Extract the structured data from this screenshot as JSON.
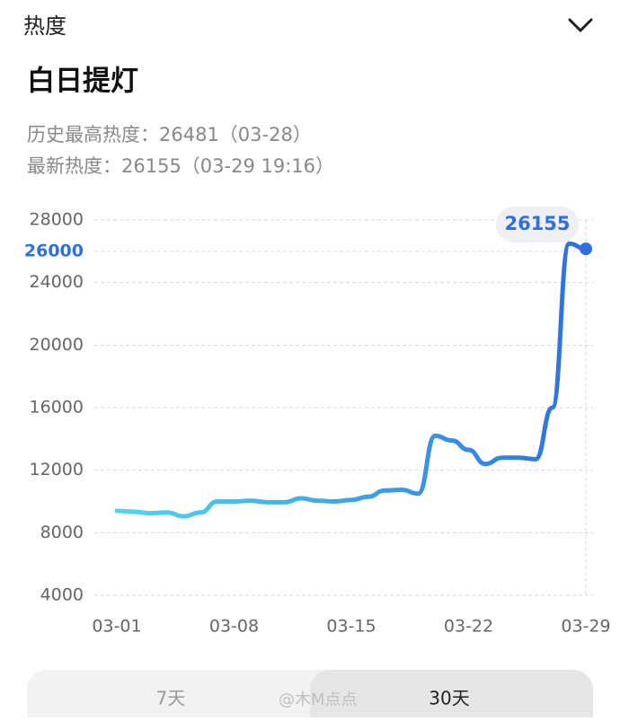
{
  "header": {
    "title": "热度"
  },
  "name": "白日提灯",
  "stats": [
    "历史最高热度：26481（03-28）",
    "最新热度：26155（03-29 19:16）"
  ],
  "chart_data": {
    "type": "line",
    "categories": [
      "03-01",
      null,
      null,
      null,
      null,
      null,
      null,
      "03-08",
      null,
      null,
      null,
      null,
      null,
      null,
      "03-15",
      null,
      null,
      null,
      null,
      null,
      null,
      "03-22",
      null,
      null,
      null,
      null,
      null,
      null,
      "03-29"
    ],
    "series": [
      {
        "name": "热度",
        "color": "#2f6fe0",
        "values": [
          9400,
          9350,
          9250,
          9300,
          9050,
          9300,
          10000,
          10000,
          10050,
          9950,
          9950,
          10200,
          10050,
          10000,
          10100,
          10300,
          10700,
          10750,
          10500,
          14200,
          13900,
          13300,
          12400,
          12800,
          12800,
          12700,
          16000,
          26481,
          26155
        ]
      }
    ],
    "gradient_start_color": "#4fd6f3",
    "ylim": [
      4000,
      28000
    ],
    "yticks": [
      4000,
      8000,
      12000,
      16000,
      20000,
      24000,
      26000,
      28000
    ],
    "highlight_ytick": 26000,
    "grid": true
  },
  "tabs": [
    "7天",
    "30天"
  ],
  "watermark": "@木M点点"
}
